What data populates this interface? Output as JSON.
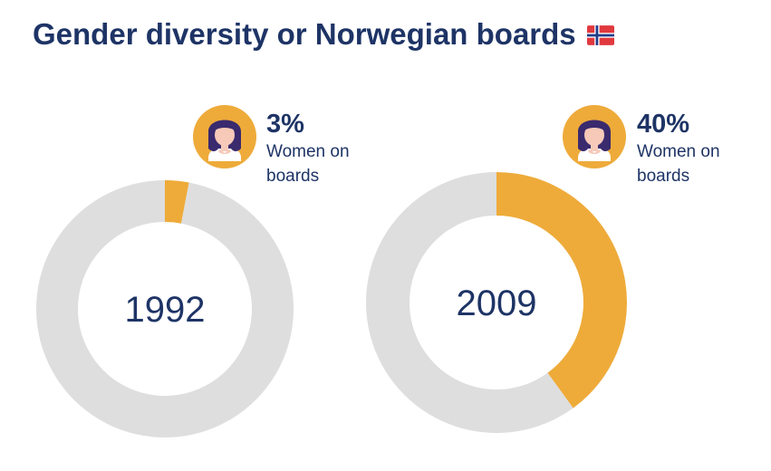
{
  "header": {
    "title": "Gender diversity or Norwegian boards",
    "flag_icon": "norway-flag-icon"
  },
  "colors": {
    "women": "#eeab3a",
    "remainder": "#dedede",
    "text": "#1e3466",
    "badge_bg": "#eeab3a",
    "hair": "#3a2a6e",
    "skin": "#f6c9b8"
  },
  "chart_data": [
    {
      "type": "pie",
      "variant": "donut",
      "center_label": "1992",
      "slices": [
        {
          "label": "Women on boards",
          "value": 3
        },
        {
          "label": "",
          "value": 97
        }
      ],
      "stat_value": "3%",
      "stat_caption": "Women on boards",
      "icon": "woman-avatar-icon"
    },
    {
      "type": "pie",
      "variant": "donut",
      "center_label": "2009",
      "slices": [
        {
          "label": "Women on boards",
          "value": 40
        },
        {
          "label": "",
          "value": 60
        }
      ],
      "stat_value": "40%",
      "stat_caption": "Women on boards",
      "icon": "woman-avatar-icon"
    }
  ]
}
